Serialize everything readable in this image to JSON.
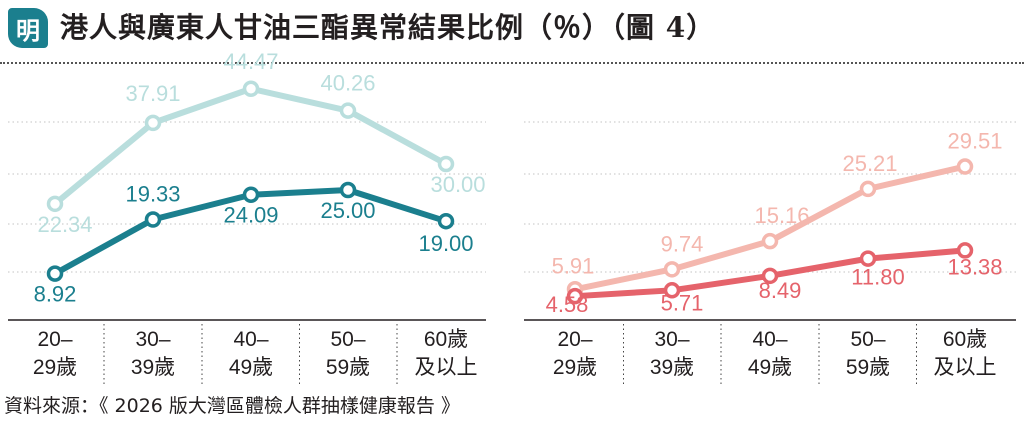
{
  "header": {
    "logo_text": "明",
    "title": "港人與廣東人甘油三酯異常結果比例（％）（圖 4）"
  },
  "source": "資料來源：《 2026 版大灣區體檢人群抽樣健康報告 》",
  "colors": {
    "hk_dark": "#1b7f8e",
    "hk_light": "#b9dedd",
    "gd_dark": "#e5636b",
    "gd_light": "#f4b7ae",
    "grid": "#cfcfcf",
    "logo": "#1b7f8e"
  },
  "chart_data": [
    {
      "type": "line",
      "categories": [
        "20–\n29歲",
        "30–\n39歲",
        "40–\n49歲",
        "50–\n59歲",
        "60歲\n及以上"
      ],
      "ylim": [
        0,
        50
      ],
      "grid": true,
      "series": [
        {
          "color": "#b9dedd",
          "values": [
            22.34,
            37.91,
            44.47,
            40.26,
            30.0
          ],
          "labels": [
            "22.34",
            "37.91",
            "44.47",
            "40.26",
            "30.00"
          ]
        },
        {
          "color": "#1b7f8e",
          "values": [
            8.92,
            19.33,
            24.09,
            25.0,
            19.0
          ],
          "labels": [
            "8.92",
            "19.33",
            "24.09",
            "25.00",
            "19.00"
          ]
        }
      ]
    },
    {
      "type": "line",
      "categories": [
        "20–\n29歲",
        "30–\n39歲",
        "40–\n49歲",
        "50–\n59歲",
        "60歲\n及以上"
      ],
      "ylim": [
        0,
        50
      ],
      "grid": true,
      "series": [
        {
          "color": "#f4b7ae",
          "values": [
            5.91,
            9.74,
            15.16,
            25.21,
            29.51
          ],
          "labels": [
            "5.91",
            "9.74",
            "15.16",
            "25.21",
            "29.51"
          ]
        },
        {
          "color": "#e5636b",
          "values": [
            4.58,
            5.71,
            8.49,
            11.8,
            13.38
          ],
          "labels": [
            "4.58",
            "5.71",
            "8.49",
            "11.80",
            "13.38"
          ]
        }
      ]
    }
  ]
}
